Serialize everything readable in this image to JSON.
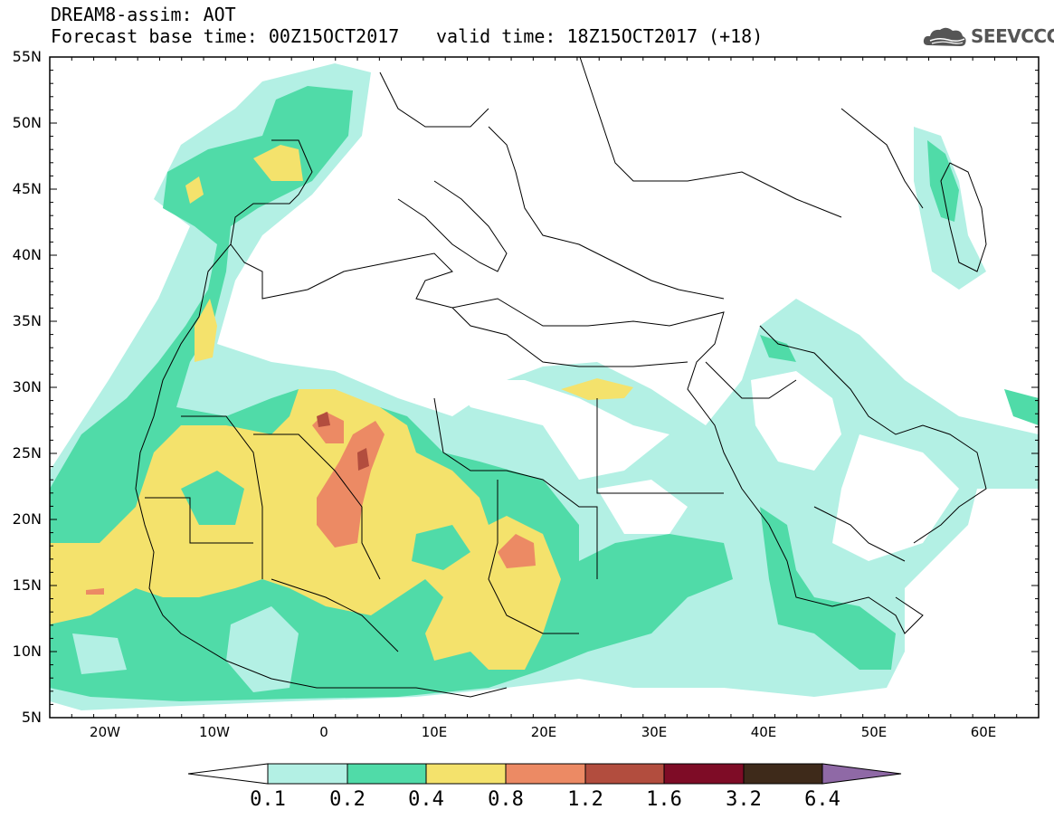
{
  "header": {
    "line1": "DREAM8-assim: AOT",
    "line2": "Forecast base time: 00Z15OCT2017",
    "valid": "valid time: 18Z15OCT2017 (+18)",
    "logo_text": "SEEVCCC"
  },
  "map": {
    "lon_range": [
      -25,
      65
    ],
    "lat_range": [
      5,
      55
    ],
    "lat_labels": [
      "55N",
      "50N",
      "45N",
      "40N",
      "35N",
      "30N",
      "25N",
      "20N",
      "15N",
      "10N",
      "5N"
    ],
    "lon_labels": [
      "20W",
      "10W",
      "0",
      "10E",
      "20E",
      "30E",
      "40E",
      "50E",
      "60E"
    ]
  },
  "colorbar": {
    "labels": [
      "0.1",
      "0.2",
      "0.4",
      "0.8",
      "1.2",
      "1.6",
      "3.2",
      "6.4"
    ],
    "colors": [
      "#ffffff",
      "#b3f0e4",
      "#50dba8",
      "#f4e26c",
      "#ec8a64",
      "#b24d3e",
      "#7e0c26",
      "#3e2a1a",
      "#8f69a6"
    ]
  }
}
